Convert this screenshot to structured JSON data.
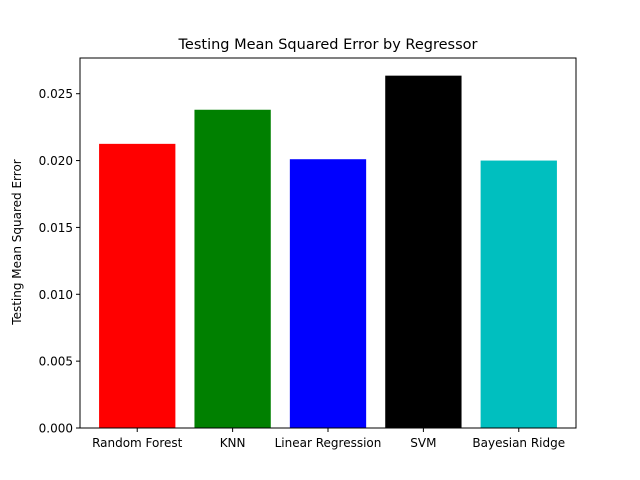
{
  "chart_data": {
    "type": "bar",
    "title": "Testing Mean Squared Error by Regressor",
    "xlabel": "",
    "ylabel": "Testing Mean Squared Error",
    "categories": [
      "Random Forest",
      "KNN",
      "Linear Regression",
      "SVM",
      "Bayesian Ridge"
    ],
    "values": [
      0.02125,
      0.0238,
      0.0201,
      0.02635,
      0.02
    ],
    "colors": [
      "#ff0000",
      "#008000",
      "#0000ff",
      "#000000",
      "#00bfbf"
    ],
    "ylim": [
      0,
      0.02767
    ],
    "yticks": [
      0,
      0.005,
      0.01,
      0.015,
      0.02,
      0.025
    ],
    "ytick_labels": [
      "0.000",
      "0.005",
      "0.010",
      "0.015",
      "0.020",
      "0.025"
    ],
    "grid": false,
    "legend": "none"
  }
}
